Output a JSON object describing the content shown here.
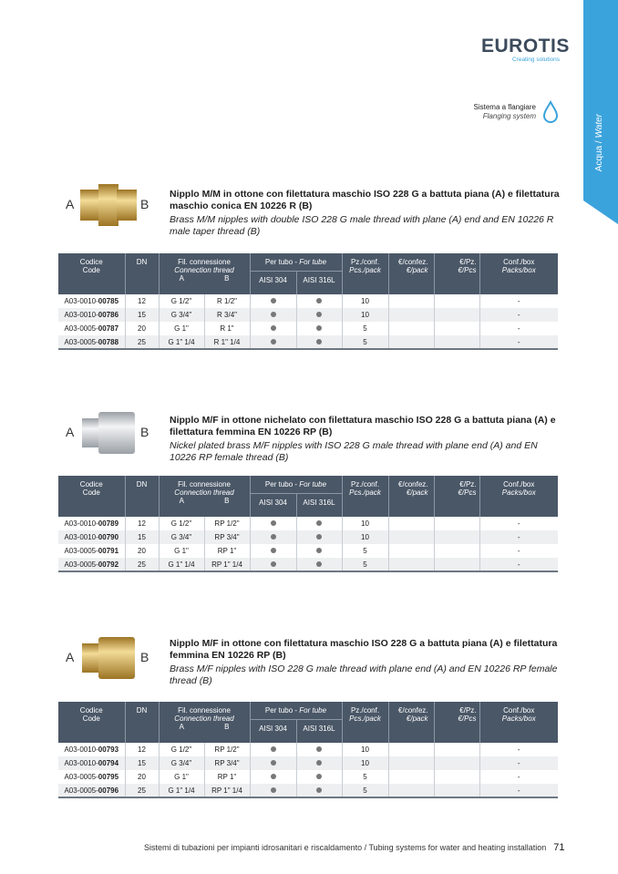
{
  "side_tab": {
    "it": "Acqua",
    "sep": " / ",
    "en": "Water",
    "color": "#3ba3dc"
  },
  "logo": {
    "brand": "EUROTIS",
    "tagline": "Creating solutions"
  },
  "system": {
    "it": "Sistema a flangiare",
    "en": "Flanging system",
    "icon": "water-drop-icon"
  },
  "headers": {
    "code_it": "Codice",
    "code_en": "Code",
    "dn": "DN",
    "fil_it": "Fil. connessione",
    "fil_en": "Connection thread",
    "a": "A",
    "b": "B",
    "tube_it": "Per tubo - ",
    "tube_en": "For tube",
    "aisi304": "AISI 304",
    "aisi316": "AISI 316L",
    "pz_it": "Pz./conf.",
    "pz_en": "Pcs./pack",
    "eur_conf_it": "€/confez.",
    "eur_conf_en": "€/pack",
    "eur_pz_it": "€/Pz.",
    "eur_pz_en": "€/Pcs",
    "box_it": "Conf./box",
    "box_en": "Packs/box"
  },
  "sections": [
    {
      "title": "Nipplo M/M in ottone con filettatura maschio ISO 228 G a battuta piana (A) e filettatura maschio conica EN 10226 R (B)",
      "subtitle": "Brass M/M nipples with double ISO 228 G male thread with plane (A) end and EN 10226 R male taper thread (B)",
      "label_a": "A",
      "label_b": "B",
      "finish": "brass",
      "rows": [
        {
          "prefix": "A03-0010-",
          "code": "00785",
          "dn": "12",
          "a": "G 1/2\"",
          "b": "R 1/2\"",
          "aisi304": true,
          "aisi316": true,
          "pz": "10",
          "eur_conf": "",
          "eur_pz": "",
          "box": "-"
        },
        {
          "prefix": "A03-0010-",
          "code": "00786",
          "dn": "15",
          "a": "G 3/4\"",
          "b": "R 3/4\"",
          "aisi304": true,
          "aisi316": true,
          "pz": "10",
          "eur_conf": "",
          "eur_pz": "",
          "box": "-"
        },
        {
          "prefix": "A03-0005-",
          "code": "00787",
          "dn": "20",
          "a": "G 1\"",
          "b": "R 1\"",
          "aisi304": true,
          "aisi316": true,
          "pz": "5",
          "eur_conf": "",
          "eur_pz": "",
          "box": "-"
        },
        {
          "prefix": "A03-0005-",
          "code": "00788",
          "dn": "25",
          "a": "G 1\" 1/4",
          "b": "R 1\" 1/4",
          "aisi304": true,
          "aisi316": true,
          "pz": "5",
          "eur_conf": "",
          "eur_pz": "",
          "box": "-"
        }
      ]
    },
    {
      "title": "Nipplo M/F in ottone nichelato con filettatura maschio ISO 228 G a battuta piana (A) e filettatura femmina EN 10226 RP (B)",
      "subtitle": "Nickel plated brass M/F nipples with ISO 228 G male thread with plane end (A) and EN 10226 RP female thread (B)",
      "label_a": "A",
      "label_b": "B",
      "finish": "nickel",
      "rows": [
        {
          "prefix": "A03-0010-",
          "code": "00789",
          "dn": "12",
          "a": "G 1/2\"",
          "b": "RP 1/2\"",
          "aisi304": true,
          "aisi316": true,
          "pz": "10",
          "eur_conf": "",
          "eur_pz": "",
          "box": "-"
        },
        {
          "prefix": "A03-0010-",
          "code": "00790",
          "dn": "15",
          "a": "G 3/4\"",
          "b": "RP 3/4\"",
          "aisi304": true,
          "aisi316": true,
          "pz": "10",
          "eur_conf": "",
          "eur_pz": "",
          "box": "-"
        },
        {
          "prefix": "A03-0005-",
          "code": "00791",
          "dn": "20",
          "a": "G 1\"",
          "b": "RP 1\"",
          "aisi304": true,
          "aisi316": true,
          "pz": "5",
          "eur_conf": "",
          "eur_pz": "",
          "box": "-"
        },
        {
          "prefix": "A03-0005-",
          "code": "00792",
          "dn": "25",
          "a": "G 1\" 1/4",
          "b": "RP 1\" 1/4",
          "aisi304": true,
          "aisi316": true,
          "pz": "5",
          "eur_conf": "",
          "eur_pz": "",
          "box": "-"
        }
      ]
    },
    {
      "title": "Nipplo M/F in ottone con filettatura maschio ISO 228 G a battuta piana (A) e filettatura femmina EN 10226 RP (B)",
      "subtitle": "Brass M/F nipples with ISO 228 G male thread with plane end (A) and EN 10226 RP female thread (B)",
      "label_a": "A",
      "label_b": "B",
      "finish": "brass",
      "rows": [
        {
          "prefix": "A03-0010-",
          "code": "00793",
          "dn": "12",
          "a": "G 1/2\"",
          "b": "RP 1/2\"",
          "aisi304": true,
          "aisi316": true,
          "pz": "10",
          "eur_conf": "",
          "eur_pz": "",
          "box": "-"
        },
        {
          "prefix": "A03-0010-",
          "code": "00794",
          "dn": "15",
          "a": "G 3/4\"",
          "b": "RP 3/4\"",
          "aisi304": true,
          "aisi316": true,
          "pz": "10",
          "eur_conf": "",
          "eur_pz": "",
          "box": "-"
        },
        {
          "prefix": "A03-0005-",
          "code": "00795",
          "dn": "20",
          "a": "G 1\"",
          "b": "RP 1\"",
          "aisi304": true,
          "aisi316": true,
          "pz": "5",
          "eur_conf": "",
          "eur_pz": "",
          "box": "-"
        },
        {
          "prefix": "A03-0005-",
          "code": "00796",
          "dn": "25",
          "a": "G 1\" 1/4",
          "b": "RP 1\" 1/4",
          "aisi304": true,
          "aisi316": true,
          "pz": "5",
          "eur_conf": "",
          "eur_pz": "",
          "box": "-"
        }
      ]
    }
  ],
  "footer": {
    "text": "Sistemi di tubazioni per impianti idrosanitari e riscaldamento / Tubing systems for water and heating installation",
    "page": "71"
  }
}
